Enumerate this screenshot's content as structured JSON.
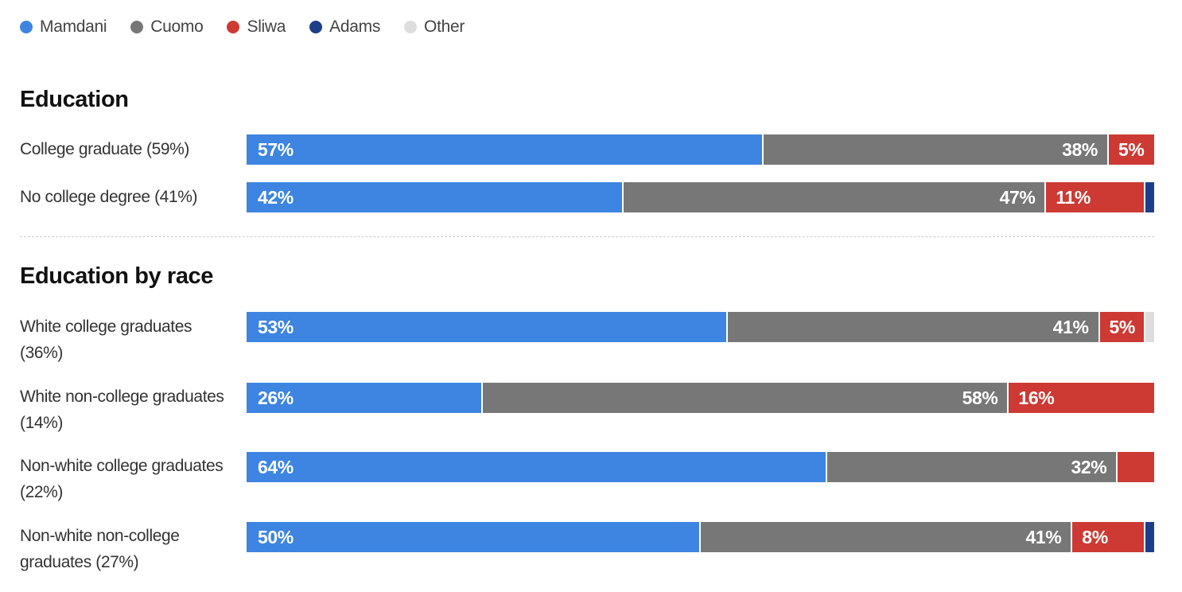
{
  "legend": [
    {
      "name": "Mamdani",
      "color": "#3d85e0"
    },
    {
      "name": "Cuomo",
      "color": "#777777"
    },
    {
      "name": "Sliwa",
      "color": "#cc3a33"
    },
    {
      "name": "Adams",
      "color": "#1d3f87"
    },
    {
      "name": "Other",
      "color": "#dddddd"
    }
  ],
  "chart_data": {
    "type": "bar",
    "orientation": "horizontal",
    "stacked": true,
    "percent_stacked": true,
    "sections": [
      {
        "title": "Education",
        "rows": [
          {
            "label": "College graduate (59%)",
            "values": [
              57,
              38,
              5,
              0,
              0
            ],
            "labels": [
              "57%",
              "38%",
              "5%",
              "",
              ""
            ]
          },
          {
            "label": "No college degree (41%)",
            "values": [
              42,
              47,
              11,
              1,
              0
            ],
            "labels": [
              "42%",
              "47%",
              "11%",
              "",
              ""
            ]
          }
        ]
      },
      {
        "title": "Education by race",
        "rows": [
          {
            "label": "White college graduates (36%)",
            "values": [
              53,
              41,
              5,
              0,
              1
            ],
            "labels": [
              "53%",
              "41%",
              "5%",
              "",
              ""
            ]
          },
          {
            "label": "White non-college graduates (14%)",
            "values": [
              26,
              58,
              16,
              0,
              0
            ],
            "labels": [
              "26%",
              "58%",
              "16%",
              "",
              ""
            ]
          },
          {
            "label": "Non-white college graduates (22%)",
            "values": [
              64,
              32,
              4,
              0,
              0
            ],
            "labels": [
              "64%",
              "32%",
              "",
              "",
              ""
            ]
          },
          {
            "label": "Non-white non-college graduates (27%)",
            "values": [
              50,
              41,
              8,
              1,
              0
            ],
            "labels": [
              "50%",
              "41%",
              "8%",
              "",
              ""
            ]
          }
        ]
      }
    ]
  }
}
